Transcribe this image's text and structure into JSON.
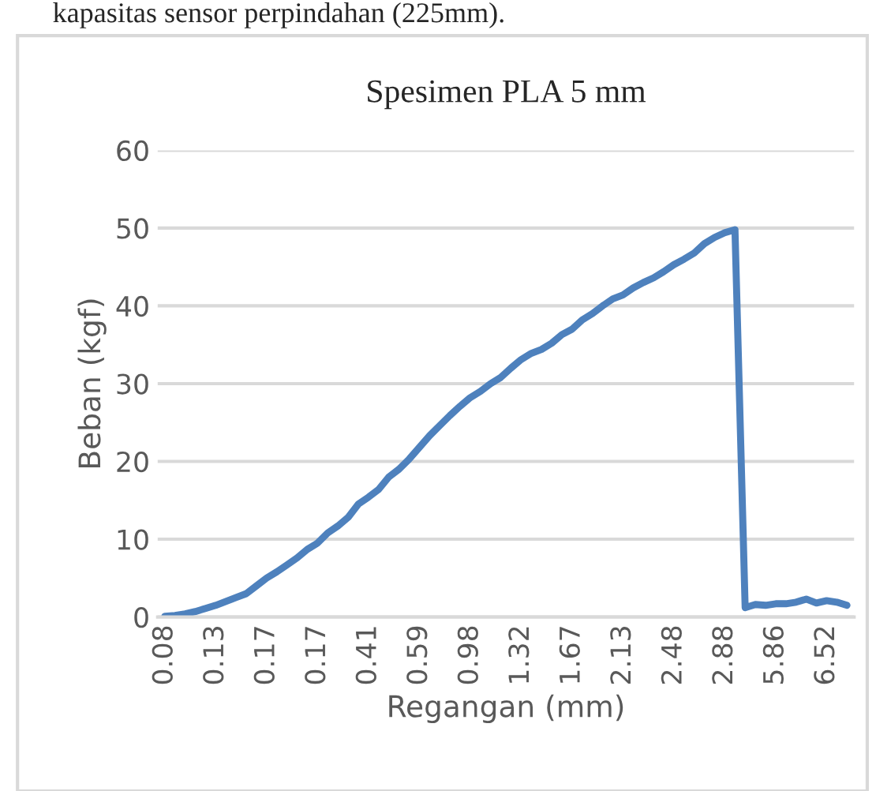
{
  "chart_data": {
    "type": "line",
    "title": "Spesimen PLA 5 mm",
    "xlabel": "Regangan (mm)",
    "ylabel": "Beban (kgf)",
    "annotations": [
      "kapasitas sensor perpindahan (225mm)."
    ],
    "categories": [
      "0.08",
      null,
      null,
      null,
      null,
      "0.13",
      null,
      null,
      null,
      null,
      "0.17",
      null,
      null,
      null,
      null,
      "0.17",
      null,
      null,
      null,
      null,
      "0.41",
      null,
      null,
      null,
      null,
      "0.59",
      null,
      null,
      null,
      null,
      "0.98",
      null,
      null,
      null,
      null,
      "1.32",
      null,
      null,
      null,
      null,
      "1.67",
      null,
      null,
      null,
      null,
      "2.13",
      null,
      null,
      null,
      null,
      "2.48",
      null,
      null,
      null,
      null,
      "2.88",
      null,
      null,
      null,
      null,
      "5.86",
      null,
      null,
      null,
      null,
      "6.52",
      null,
      null
    ],
    "series": [
      {
        "color": "#4e81bd",
        "values": [
          0.1,
          0.2,
          0.4,
          0.7,
          1.1,
          1.5,
          2.0,
          2.5,
          3.0,
          4.0,
          5.0,
          5.8,
          6.7,
          7.6,
          8.7,
          9.5,
          10.8,
          11.7,
          12.8,
          14.5,
          15.4,
          16.4,
          18.0,
          19.0,
          20.3,
          21.8,
          23.3,
          24.6,
          25.9,
          27.1,
          28.2,
          29.0,
          30.0,
          30.8,
          32.0,
          33.1,
          33.9,
          34.4,
          35.2,
          36.3,
          37.0,
          38.2,
          39.0,
          40.0,
          40.9,
          41.4,
          42.3,
          43.0,
          43.6,
          44.4,
          45.3,
          46.0,
          46.8,
          48.0,
          48.8,
          49.4,
          49.8,
          1.2,
          1.6,
          1.5,
          1.7,
          1.7,
          1.9,
          2.3,
          1.8,
          2.1,
          1.9,
          1.5
        ]
      }
    ],
    "ylim": [
      0,
      60
    ],
    "yticks": [
      0,
      10,
      20,
      30,
      40,
      50,
      60
    ],
    "grid": "y",
    "marker": "none",
    "line_style": "solid"
  }
}
